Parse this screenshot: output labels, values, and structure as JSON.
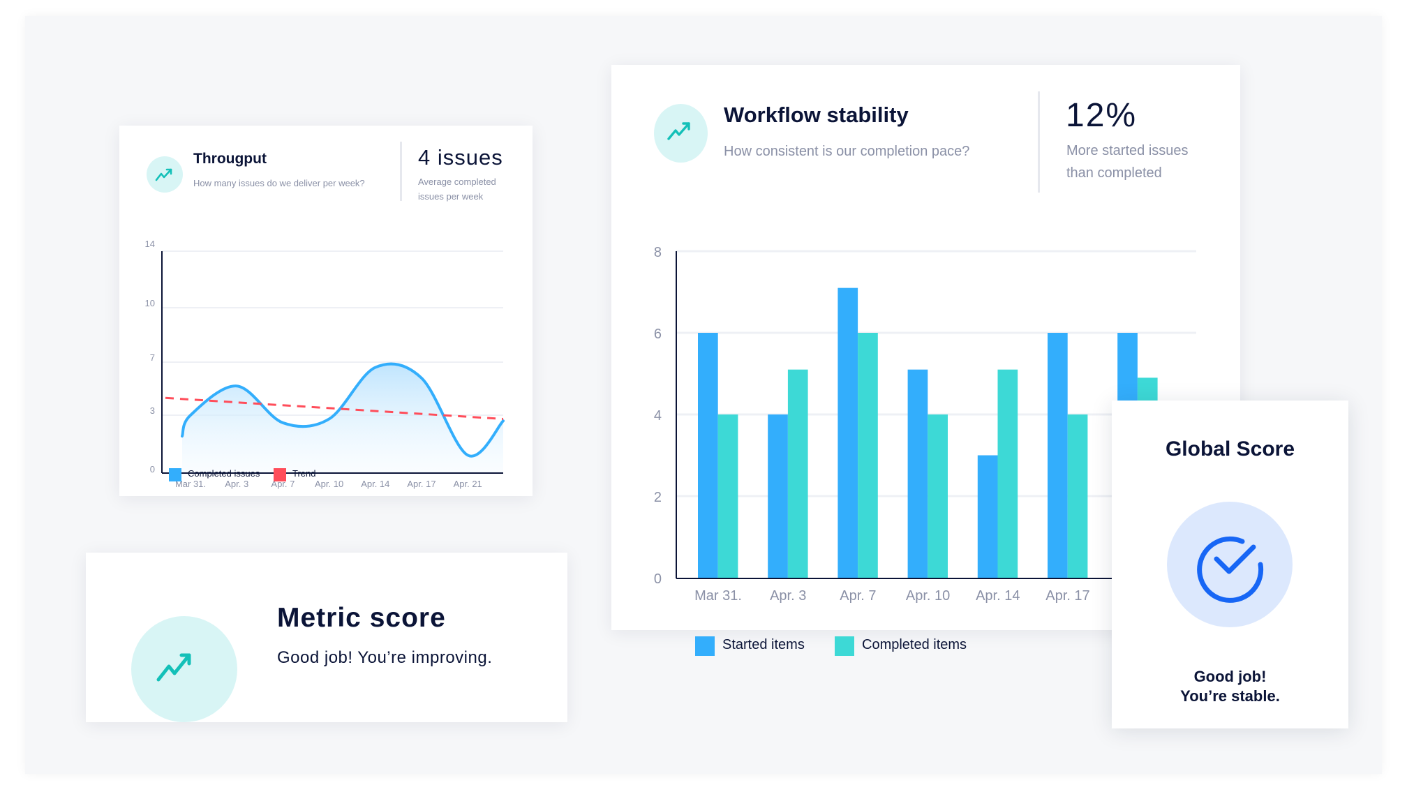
{
  "colors": {
    "navy": "#0b1437",
    "gray_text": "#8a90a6",
    "started": "#33aefc",
    "completed": "#3dd9d6",
    "completed_line": "#33aefc",
    "trend": "#ff4d5a",
    "teal_icon": "#13c0b8",
    "teal_circle": "#d8f5f5",
    "check_blue": "#1766f5",
    "check_circle": "#dce8fd"
  },
  "throughput": {
    "icon": "trending-up-icon",
    "title": "Througput",
    "subtitle": "How many issues do we deliver per week?",
    "stat_value": "4 issues",
    "stat_label_line1": "Average completed",
    "stat_label_line2": "issues per week",
    "legend": [
      {
        "label": "Completed issues",
        "color": "#33aefc"
      },
      {
        "label": "Trend",
        "color": "#ff4d5a"
      }
    ]
  },
  "workflow": {
    "icon": "trending-up-icon",
    "title": "Workflow stability",
    "subtitle": "How consistent is our completion pace?",
    "stat_value": "12%",
    "stat_label_line1": "More started issues",
    "stat_label_line2": "than completed",
    "legend": [
      {
        "label": "Started items",
        "color": "#33aefc"
      },
      {
        "label": "Completed items",
        "color": "#3dd9d6"
      }
    ]
  },
  "metric": {
    "icon": "trending-up-icon",
    "title": "Metric score",
    "message": "Good job! You’re improving."
  },
  "global": {
    "icon": "check-circle-icon",
    "title": "Global Score",
    "message_line1": "Good job!",
    "message_line2": "You’re stable."
  },
  "chart_data": [
    {
      "type": "line",
      "yticks": [
        0,
        3,
        7,
        10,
        14
      ],
      "ytick_labels": [
        "0",
        "3",
        "7",
        "10",
        "14"
      ],
      "categories": [
        "Mar 31.",
        "Apr. 3",
        "Apr. 7",
        "Apr. 10",
        "Apr. 14",
        "Apr. 17",
        "Apr. 21"
      ],
      "grid": true,
      "legend_placement": "bottom-left",
      "series": [
        {
          "name": "Completed issues",
          "start_value": 1.9,
          "values": [
            3.0,
            5.2,
            2.6,
            2.8,
            6.6,
            5.8,
            0.9
          ],
          "end_value": 2.7,
          "area_fill": true
        },
        {
          "name": "Trend",
          "style": "dashed",
          "start_value": 4.3,
          "end_value": 2.8
        }
      ]
    },
    {
      "type": "bar",
      "ylim": [
        0,
        8
      ],
      "yticks": [
        0,
        2,
        4,
        6,
        8
      ],
      "categories": [
        "Mar 31.",
        "Apr. 3",
        "Apr. 7",
        "Apr. 10",
        "Apr. 14",
        "Apr. 17",
        ""
      ],
      "grid": true,
      "legend_placement": "bottom-left",
      "series": [
        {
          "name": "Started items",
          "values": [
            6,
            4,
            7.1,
            5.1,
            3,
            6,
            6
          ]
        },
        {
          "name": "Completed items",
          "values": [
            4,
            5.1,
            6,
            4,
            5.1,
            4,
            4.9
          ]
        }
      ]
    }
  ]
}
